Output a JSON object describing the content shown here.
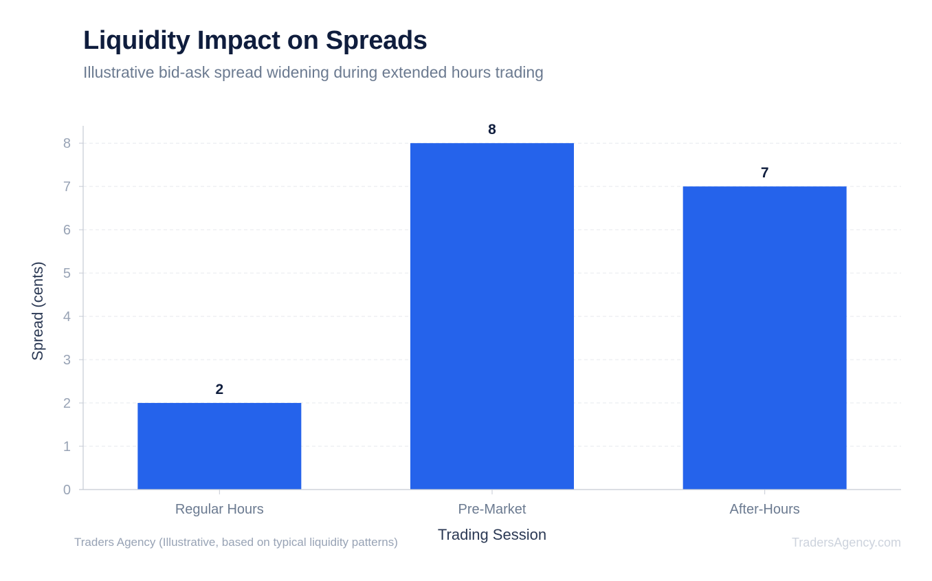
{
  "chart_data": {
    "type": "bar",
    "title": "Liquidity Impact on Spreads",
    "subtitle": "Illustrative bid-ask spread widening during extended hours trading",
    "categories": [
      "Regular Hours",
      "Pre-Market",
      "After-Hours"
    ],
    "values": [
      2,
      8,
      7
    ],
    "data_labels": [
      "2",
      "8",
      "7"
    ],
    "xlabel": "Trading Session",
    "ylabel": "Spread (cents)",
    "ylim": [
      0,
      8.4
    ],
    "yticks": [
      "0",
      "1",
      "2",
      "3",
      "4",
      "5",
      "6",
      "7",
      "8"
    ],
    "grid": true,
    "bar_color": "#2563eb",
    "legend": "none"
  },
  "footer": {
    "source": "Traders Agency (Illustrative, based on typical liquidity patterns)",
    "watermark": "TradersAgency.com"
  }
}
